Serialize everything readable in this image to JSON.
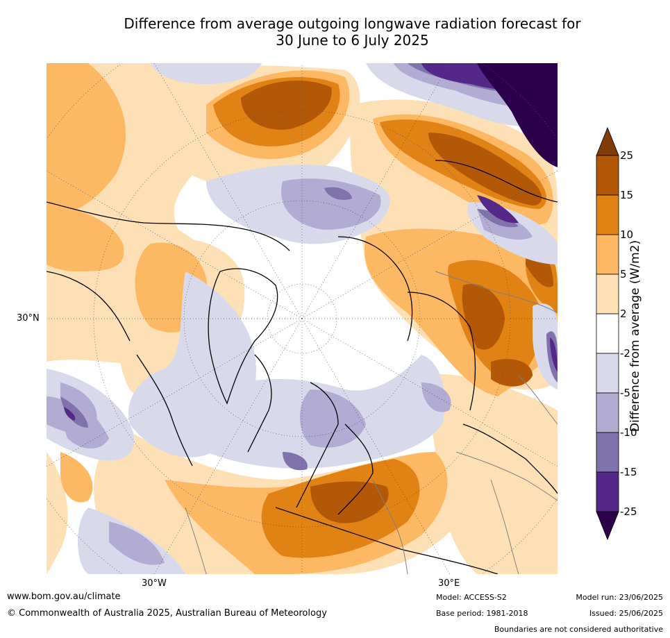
{
  "title": {
    "line1": "Difference from average outgoing longwave radiation forecast for",
    "line2": "30 June to 6 July 2025"
  },
  "map": {
    "projection": "north-polar-stereographic",
    "lat_label": "30°N",
    "lon_labels": [
      "30°W",
      "30°E"
    ]
  },
  "legend": {
    "title": "Difference from average (W/m2)",
    "ticks": [
      "25",
      "15",
      "10",
      "5",
      "2",
      "-2",
      "-5",
      "-10",
      "-15",
      "-25"
    ],
    "colors": {
      "above_25": "#7f3b08",
      "15_25": "#b35806",
      "10_15": "#e08214",
      "5_10": "#fdb863",
      "2_5": "#fee0b6",
      "neutral": "#ffffff",
      "m5_m2": "#d8daeb",
      "m10_m5": "#b2abd2",
      "m15_m10": "#8073ac",
      "m25_m15": "#542788",
      "below_m25": "#2d004b"
    }
  },
  "footer": {
    "website": "www.bom.gov.au/climate",
    "copyright": "© Commonwealth of Australia 2025, Australian Bureau of Meteorology",
    "model": "Model: ACCESS-S2",
    "base_period": "Base period: 1981-2018",
    "model_run": "Model run: 23/06/2025",
    "issued": "Issued: 25/06/2025",
    "disclaimer": "Boundaries are not considered authoritative"
  }
}
